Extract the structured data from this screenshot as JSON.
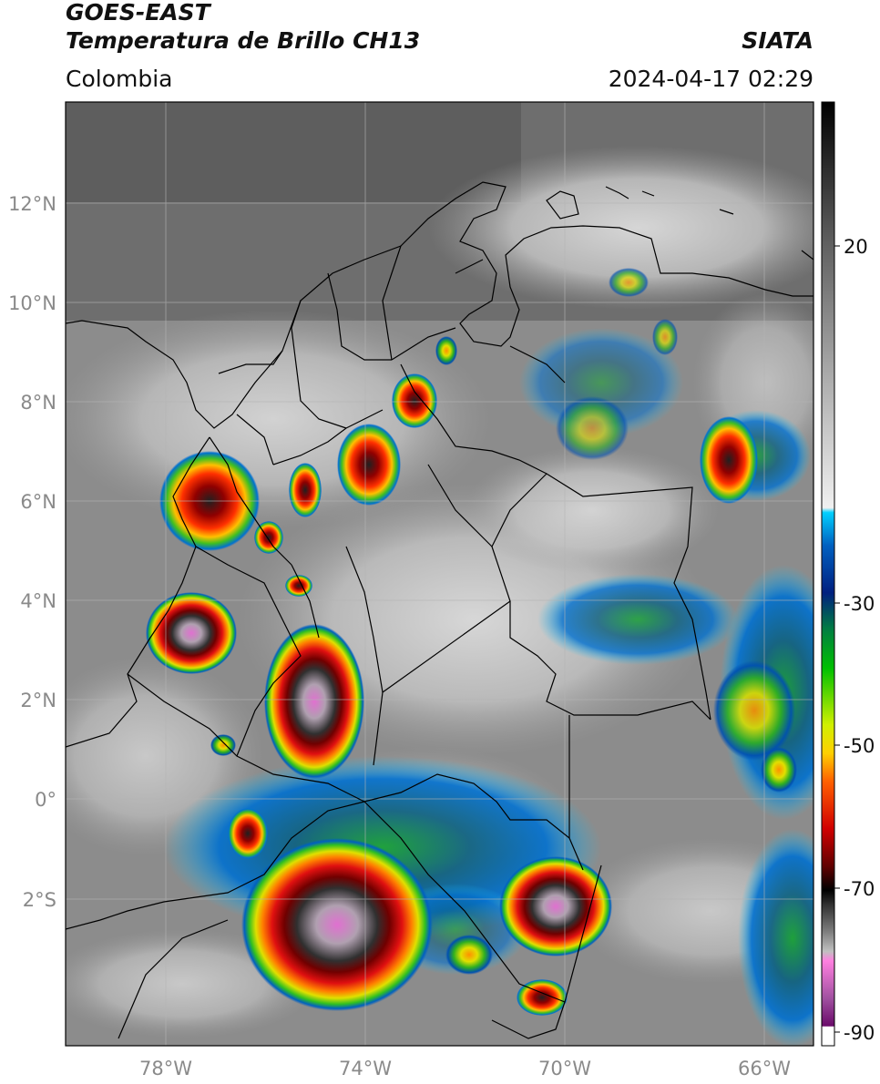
{
  "header": {
    "satellite": "GOES-EAST",
    "product": "Temperatura de Brillo CH13",
    "agency": "SIATA",
    "region": "Colombia",
    "timestamp": "2024-04-17 02:29"
  },
  "map": {
    "lat_labels": [
      "12°N",
      "10°N",
      "8°N",
      "6°N",
      "4°N",
      "2°N",
      "0°",
      "2°S"
    ],
    "lon_labels": [
      "78°W",
      "74°W",
      "70°W",
      "66°W"
    ]
  },
  "colorbar": {
    "ticks": [
      "20",
      "-30",
      "-50",
      "-70",
      "-90"
    ]
  },
  "colors": {
    "background_gray": "#7d7d7d",
    "cloud_white": "#dcdcdc",
    "frame": "#000000"
  }
}
